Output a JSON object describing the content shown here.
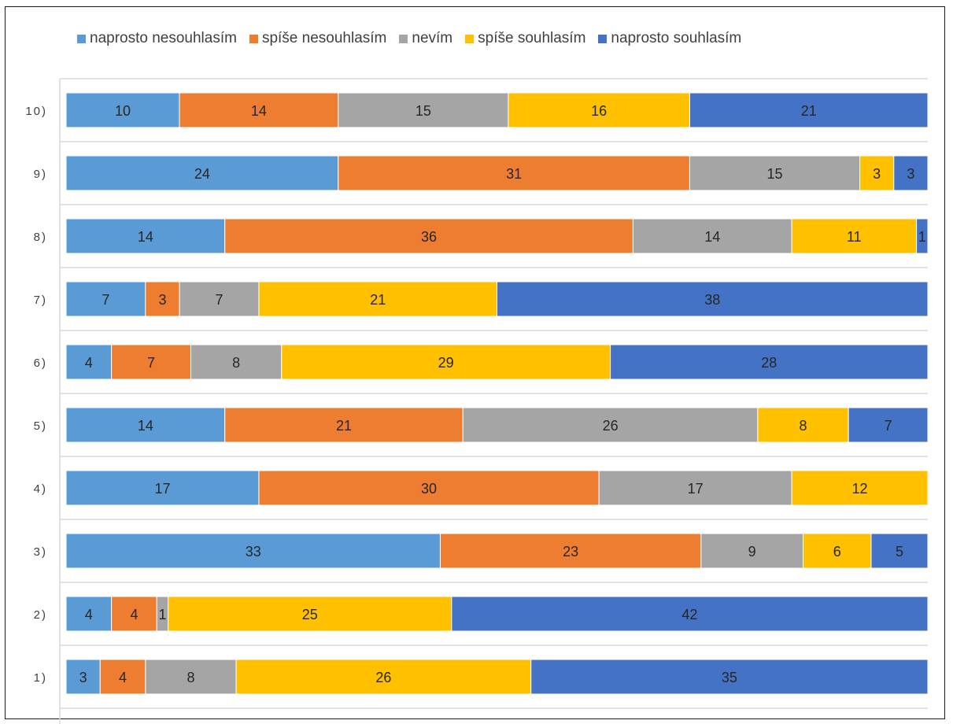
{
  "chart_data": {
    "type": "bar",
    "orientation": "horizontal",
    "stacked": true,
    "categories": [
      "1)",
      "2)",
      "3)",
      "4)",
      "5)",
      "6)",
      "7)",
      "8)",
      "9)",
      "10)"
    ],
    "series": [
      {
        "name": "naprosto nesouhlasím",
        "color": "#5B9BD5",
        "values": [
          3,
          4,
          33,
          17,
          14,
          4,
          7,
          14,
          24,
          10
        ]
      },
      {
        "name": "spíše nesouhlasím",
        "color": "#ED7D31",
        "values": [
          4,
          4,
          23,
          30,
          21,
          7,
          3,
          36,
          31,
          14
        ]
      },
      {
        "name": "nevím",
        "color": "#A5A5A5",
        "values": [
          8,
          1,
          9,
          17,
          26,
          8,
          7,
          14,
          15,
          15
        ]
      },
      {
        "name": "spíše souhlasím",
        "color": "#FFC000",
        "values": [
          26,
          25,
          6,
          12,
          8,
          29,
          21,
          11,
          3,
          16
        ]
      },
      {
        "name": "naprosto souhlasím",
        "color": "#4472C4",
        "values": [
          35,
          42,
          5,
          0,
          7,
          28,
          38,
          1,
          3,
          21
        ]
      }
    ],
    "data_labels": true,
    "legend_position": "top",
    "grid": true
  }
}
